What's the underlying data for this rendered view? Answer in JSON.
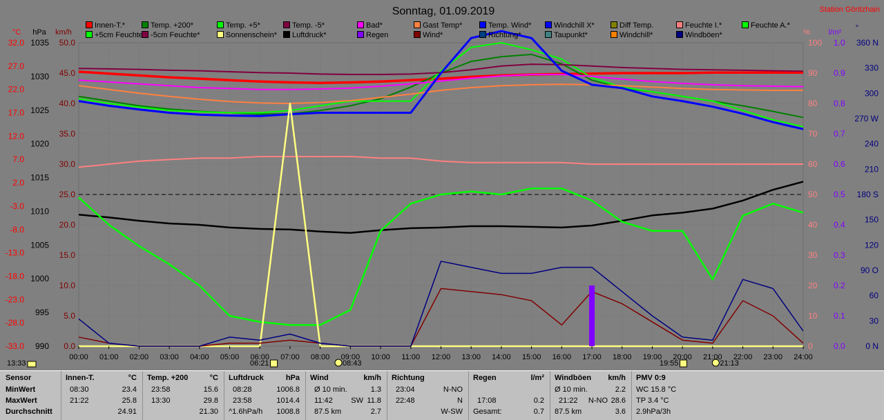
{
  "header": {
    "title": "Sonntag, 01.09.2019",
    "station": "Station Göritzhain"
  },
  "axes": {
    "left_units": [
      "°C",
      "hPa",
      "km/h"
    ],
    "right_units": [
      "%",
      "l/m²",
      "°"
    ],
    "degc": [
      "32.0",
      "27.0",
      "22.0",
      "17.0",
      "12.0",
      "7.0",
      "2.0",
      "-3.0",
      "-8.0",
      "-13.0",
      "-18.0",
      "-23.0",
      "-28.0",
      "-33.0"
    ],
    "hpa": [
      "1035",
      "1030",
      "1025",
      "1020",
      "1015",
      "1010",
      "1005",
      "1000",
      "995",
      "990"
    ],
    "kmh": [
      "50.0",
      "45.0",
      "40.0",
      "35.0",
      "30.0",
      "25.0",
      "20.0",
      "15.0",
      "10.0",
      "5.0",
      "0.0"
    ],
    "pct": [
      "100",
      "90",
      "80",
      "70",
      "60",
      "50",
      "40",
      "30",
      "20",
      "10",
      "0"
    ],
    "rain": [
      "1.0",
      "0.9",
      "0.8",
      "0.7",
      "0.6",
      "0.5",
      "0.4",
      "0.3",
      "0.2",
      "0.1",
      "0.0"
    ],
    "dir": [
      "360 N",
      "330",
      "300",
      "270 W",
      "240",
      "210",
      "180 S",
      "150",
      "120",
      "90 O",
      "60",
      "30",
      "0 N"
    ],
    "time": [
      "00:00",
      "01:00",
      "02:00",
      "03:00",
      "04:00",
      "05:00",
      "06:00",
      "07:00",
      "08:00",
      "09:00",
      "10:00",
      "11:00",
      "12:00",
      "13:00",
      "14:00",
      "15:00",
      "16:00",
      "17:00",
      "18:00",
      "19:00",
      "20:00",
      "21:00",
      "22:00",
      "23:00",
      "24:00"
    ]
  },
  "markers": {
    "left_time": "13:33",
    "sunrise": "06:21",
    "moon1": "08:43",
    "sunset": "19:55",
    "moon2": "21:13"
  },
  "legend": [
    {
      "label": "Innen-T.*",
      "color": "#ff0000"
    },
    {
      "label": "Temp. +200*",
      "color": "#008000"
    },
    {
      "label": "Temp. +5*",
      "color": "#00ff00"
    },
    {
      "label": "Temp. -5*",
      "color": "#800040"
    },
    {
      "label": "Bad*",
      "color": "#ff00ff"
    },
    {
      "label": "Gast Temp*",
      "color": "#ff8040"
    },
    {
      "label": "Temp. Wind*",
      "color": "#0000ff"
    },
    {
      "label": "Windchill X*",
      "color": "#0000ff"
    },
    {
      "label": "Diff Temp.",
      "color": "#808000"
    },
    {
      "label": "Feuchte I.*",
      "color": "#ff8080"
    },
    {
      "label": "Feuchte A.*",
      "color": "#00ff00"
    },
    {
      "label": "+5cm Feuchte*",
      "color": "#00ff00"
    },
    {
      "label": "-5cm Feuchte*",
      "color": "#800040"
    },
    {
      "label": "Sonnenschein*",
      "color": "#ffff80"
    },
    {
      "label": "Luftdruck*",
      "color": "#000000"
    },
    {
      "label": "Regen",
      "color": "#8000ff"
    },
    {
      "label": "Wind*",
      "color": "#800000"
    },
    {
      "label": "Richtung*",
      "color": "#004080"
    },
    {
      "label": "Taupunkt*",
      "color": "#408080"
    },
    {
      "label": "Windchill*",
      "color": "#ff8000"
    },
    {
      "label": "Windböen*",
      "color": "#000080"
    }
  ],
  "chart_data": {
    "type": "line",
    "title": "Sonntag, 01.09.2019",
    "x": [
      0,
      1,
      2,
      3,
      4,
      5,
      6,
      7,
      8,
      9,
      10,
      11,
      12,
      13,
      14,
      15,
      16,
      17,
      18,
      19,
      20,
      21,
      22,
      23,
      24
    ],
    "xlabel": "",
    "y_axes": {
      "temperature_c": [
        -33,
        32
      ],
      "pressure_hpa": [
        990,
        1035
      ],
      "wind_kmh": [
        0,
        50
      ],
      "humidity_pct": [
        0,
        100
      ],
      "rain_l_m2": [
        0,
        1
      ],
      "direction_deg": [
        0,
        360
      ]
    },
    "series": [
      {
        "name": "Innen-T.*",
        "axis": "temperature_c",
        "values": [
          25.8,
          25.4,
          25.0,
          24.6,
          24.3,
          24.0,
          23.7,
          23.5,
          23.4,
          23.5,
          23.7,
          24.0,
          24.3,
          24.7,
          25.0,
          25.2,
          25.3,
          25.4,
          25.5,
          25.5,
          25.5,
          25.6,
          25.6,
          25.6,
          25.6
        ]
      },
      {
        "name": "Temp. +200*",
        "axis": "temperature_c",
        "values": [
          20.5,
          19.5,
          18.5,
          17.8,
          17.3,
          17.0,
          16.7,
          16.8,
          17.5,
          18.5,
          20.0,
          22.5,
          25.5,
          28.0,
          29.0,
          29.5,
          27.5,
          24.0,
          22.3,
          21.5,
          20.5,
          19.5,
          18.5,
          17.3,
          16.0
        ]
      },
      {
        "name": "Temp. +5*",
        "axis": "temperature_c",
        "values": [
          20.0,
          19.0,
          18.2,
          17.5,
          17.2,
          17.0,
          17.0,
          17.5,
          18.5,
          19.5,
          19.5,
          19.5,
          26.0,
          31.0,
          32.0,
          30.5,
          28.5,
          24.5,
          22.5,
          21.5,
          20.5,
          19.5,
          17.5,
          15.5,
          14.0
        ]
      },
      {
        "name": "Temp. -5*",
        "axis": "temperature_c",
        "values": [
          26.5,
          26.4,
          26.3,
          26.1,
          26.0,
          25.8,
          25.6,
          25.5,
          25.3,
          25.2,
          25.2,
          25.3,
          25.6,
          26.2,
          27.0,
          27.4,
          27.3,
          27.0,
          26.7,
          26.5,
          26.3,
          26.2,
          26.1,
          26.0,
          25.9
        ]
      },
      {
        "name": "Bad*",
        "axis": "temperature_c",
        "values": [
          24.0,
          23.6,
          23.2,
          22.8,
          22.4,
          22.2,
          22.0,
          22.0,
          22.1,
          22.3,
          22.7,
          23.2,
          23.8,
          24.4,
          24.9,
          25.2,
          25.2,
          24.8,
          24.2,
          23.7,
          23.3,
          23.0,
          22.8,
          22.7,
          22.6
        ]
      },
      {
        "name": "Gast Temp*",
        "axis": "temperature_c",
        "values": [
          22.8,
          22.0,
          21.2,
          20.5,
          19.9,
          19.4,
          19.1,
          19.0,
          19.2,
          19.6,
          20.3,
          21.0,
          21.8,
          22.4,
          22.8,
          23.0,
          23.1,
          23.0,
          22.8,
          22.5,
          22.2,
          22.0,
          21.9,
          21.8,
          21.8
        ]
      },
      {
        "name": "Temp. Wind*",
        "axis": "temperature_c",
        "values": [
          19.5,
          18.5,
          17.7,
          17.0,
          16.6,
          16.4,
          16.3,
          16.7,
          17.0,
          17.0,
          17.0,
          17.0,
          25.5,
          33.0,
          34.5,
          33.0,
          26.0,
          23.0,
          22.3,
          20.5,
          19.5,
          18.3,
          16.8,
          15.0,
          13.5
        ]
      },
      {
        "name": "Luftdruck*",
        "axis": "pressure_hpa",
        "values": [
          1009.5,
          1009.1,
          1008.6,
          1008.2,
          1008.0,
          1007.6,
          1007.4,
          1007.3,
          1007.0,
          1006.8,
          1007.2,
          1007.5,
          1007.6,
          1007.8,
          1007.8,
          1007.7,
          1007.6,
          1007.9,
          1008.6,
          1009.4,
          1009.8,
          1010.4,
          1011.6,
          1013.2,
          1014.4
        ]
      },
      {
        "name": "Feuchte I.*",
        "axis": "humidity_pct",
        "values": [
          59,
          60,
          61,
          61.5,
          62,
          62,
          62.5,
          62.5,
          62.5,
          62.5,
          62,
          62,
          61,
          60.5,
          60.5,
          60.5,
          60.5,
          60,
          60,
          60,
          60,
          60,
          60,
          60,
          60
        ]
      },
      {
        "name": "Feuchte A.*",
        "axis": "humidity_pct",
        "values": [
          49,
          40,
          33,
          27,
          20,
          10,
          8,
          7,
          7,
          12,
          38,
          47,
          50,
          51,
          50,
          52,
          52,
          48,
          41,
          38,
          38,
          22,
          43,
          47,
          44
        ]
      },
      {
        "name": "Sonnenschein*",
        "axis": "humidity_pct",
        "values": [
          0,
          0,
          0,
          0,
          0,
          0,
          0,
          80,
          0,
          0,
          0,
          0,
          0,
          0,
          0,
          0,
          0,
          0,
          0,
          0,
          0,
          0,
          0,
          0,
          0
        ]
      },
      {
        "name": "Wind*",
        "axis": "wind_kmh",
        "values": [
          1.5,
          0.5,
          0,
          0,
          0,
          0.5,
          0.5,
          1.0,
          0.5,
          0,
          0,
          0,
          9.5,
          9.0,
          8.5,
          7.5,
          3.5,
          9.0,
          7.0,
          4.0,
          1.0,
          0.5,
          7.5,
          5.0,
          0.5
        ]
      },
      {
        "name": "Windböen*",
        "axis": "wind_kmh",
        "values": [
          4.5,
          0.5,
          0,
          0,
          0,
          1.5,
          1.0,
          2.0,
          0.5,
          0,
          0,
          0,
          14.0,
          13.0,
          12.0,
          12.0,
          13.0,
          13.0,
          9.0,
          5.0,
          1.5,
          1.0,
          11.0,
          9.5,
          2.5
        ]
      },
      {
        "name": "Regen",
        "axis": "rain_l_m2",
        "values": [
          0,
          0,
          0,
          0,
          0,
          0,
          0,
          0,
          0,
          0,
          0,
          0,
          0,
          0,
          0,
          0,
          0,
          0.2,
          0,
          0,
          0,
          0,
          0,
          0,
          0
        ]
      }
    ],
    "legend_position": "top",
    "grid": true
  },
  "stats": {
    "sensor": {
      "title": "Sensor",
      "rows": [
        "MinWert",
        "MaxWert",
        "Durchschnitt"
      ]
    },
    "innen": {
      "title": "Innen-T.",
      "unit": "°C",
      "rows": [
        [
          "08:30",
          "23.4"
        ],
        [
          "21:22",
          "25.8"
        ],
        [
          "",
          "24.91"
        ]
      ]
    },
    "temp200": {
      "title": "Temp. +200",
      "unit": "°C",
      "rows": [
        [
          "23:58",
          "15.6"
        ],
        [
          "13:30",
          "29.8"
        ],
        [
          "",
          "21.30"
        ]
      ]
    },
    "luftdruck": {
      "title": "Luftdruck",
      "unit": "hPa",
      "rows": [
        [
          "08:28",
          "1006.8"
        ],
        [
          "23:58",
          "1014.4"
        ],
        [
          "^1.6hPa/h",
          "1008.8"
        ]
      ]
    },
    "wind": {
      "title": "Wind",
      "unit": "km/h",
      "rows": [
        [
          "Ø 10 min.",
          "",
          "1.3"
        ],
        [
          "11:42",
          "SW",
          "11.8"
        ],
        [
          "87.5 km",
          "",
          "2.7"
        ]
      ]
    },
    "richtung": {
      "title": "Richtung",
      "unit": "",
      "rows": [
        [
          "23:04",
          "N-NO"
        ],
        [
          "22:48",
          "N"
        ],
        [
          "",
          "W-SW"
        ]
      ]
    },
    "regen": {
      "title": "Regen",
      "unit": "l/m²",
      "rows": [
        [
          "",
          ""
        ],
        [
          "17:08",
          "0.2"
        ],
        [
          "Gesamt:",
          "0.7"
        ]
      ]
    },
    "windboeen": {
      "title": "Windböen",
      "unit": "km/h",
      "rows": [
        [
          "Ø 10 min.",
          "",
          "2.2"
        ],
        [
          "21:22",
          "N-NO",
          "28.6"
        ],
        [
          "87.5 km",
          "",
          "3.6"
        ]
      ]
    },
    "pmv": {
      "title": "PMV 0:9",
      "rows": [
        "WC 15.8 °C",
        "TP 3.4 °C",
        "2.9hPa/3h"
      ]
    }
  }
}
